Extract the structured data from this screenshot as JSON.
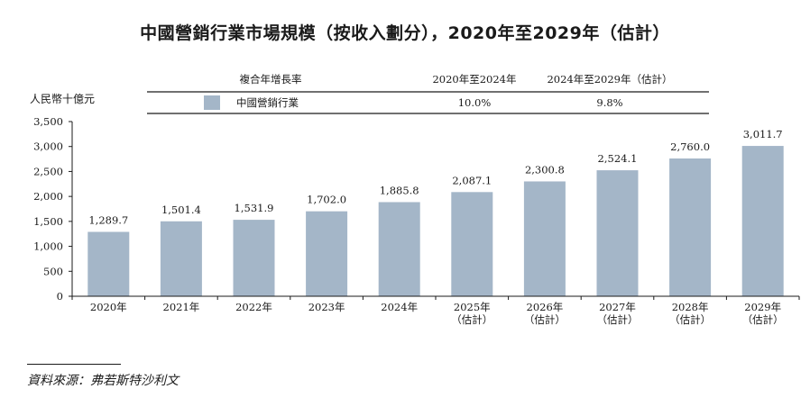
{
  "chart_data": {
    "type": "bar",
    "title": "中國營銷行業市場規模（按收入劃分），2020年至2029年（估計）",
    "ylabel": "人民幣十億元",
    "ylim": [
      0,
      3500
    ],
    "yticks": [
      "0",
      "500",
      "1,000",
      "1,500",
      "2,000",
      "2,500",
      "3,000",
      "3,500"
    ],
    "ytick_values": [
      0,
      500,
      1000,
      1500,
      2000,
      2500,
      3000,
      3500
    ],
    "categories": [
      [
        "2020年"
      ],
      [
        "2021年"
      ],
      [
        "2022年"
      ],
      [
        "2023年"
      ],
      [
        "2024年"
      ],
      [
        "2025年",
        "（估計）"
      ],
      [
        "2026年",
        "（估計）"
      ],
      [
        "2027年",
        "（估計）"
      ],
      [
        "2028年",
        "（估計）"
      ],
      [
        "2029年",
        "（估計）"
      ]
    ],
    "values": [
      1289.7,
      1501.4,
      1531.9,
      1702.0,
      1885.8,
      2087.1,
      2300.8,
      2524.1,
      2760.0,
      3011.7
    ],
    "value_labels": [
      "1,289.7",
      "1,501.4",
      "1,531.9",
      "1,702.0",
      "1,885.8",
      "2,087.1",
      "2,300.8",
      "2,524.1",
      "2,760.0",
      "3,011.7"
    ],
    "grid": false,
    "bar_color": "#a4b6c8",
    "cagr_table": {
      "header": "複合年增長率",
      "columns": [
        "2020年至2024年",
        "2024年至2029年（估計）"
      ],
      "series": "中國營銷行業",
      "values": [
        "10.0%",
        "9.8%"
      ]
    }
  },
  "source": "資料來源：弗若斯特沙利文"
}
